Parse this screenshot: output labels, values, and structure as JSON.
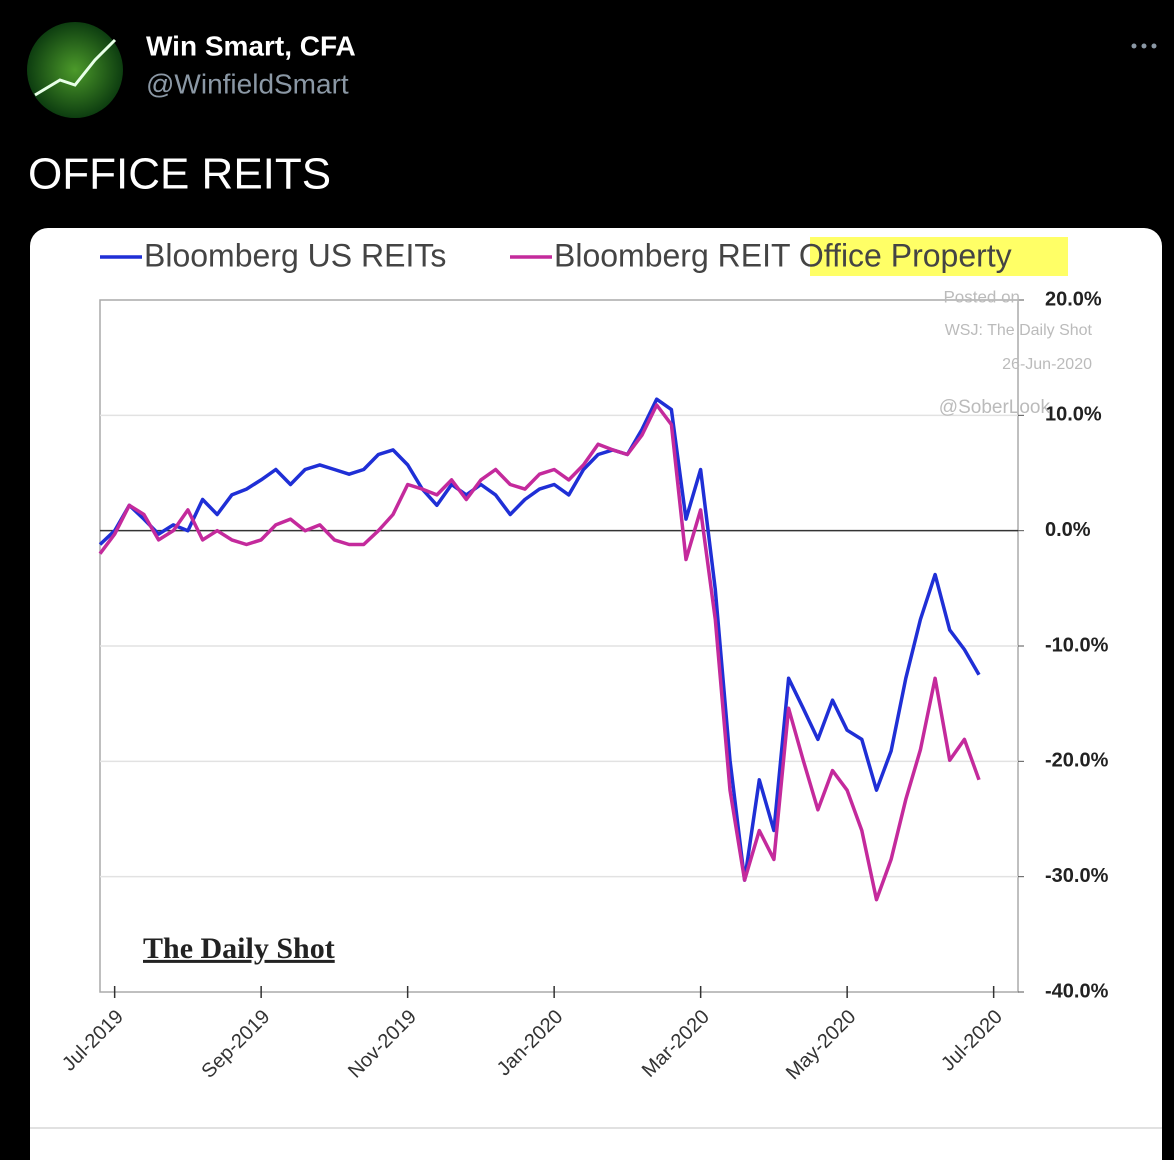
{
  "tweet": {
    "author": "Win Smart, CFA",
    "handle": "@WinfieldSmart",
    "text": "OFFICE REITS"
  },
  "chart_data": {
    "type": "line",
    "categories": [
      null,
      "Jul-2019",
      null,
      null,
      null,
      null,
      null,
      null,
      null,
      null,
      null,
      "Sep-2019",
      null,
      null,
      null,
      null,
      null,
      null,
      null,
      null,
      null,
      "Nov-2019",
      null,
      null,
      null,
      null,
      null,
      null,
      null,
      null,
      null,
      "Jan-2020",
      null,
      null,
      null,
      null,
      null,
      null,
      null,
      null,
      null,
      "Mar-2020",
      null,
      null,
      null,
      null,
      null,
      null,
      null,
      null,
      null,
      "May-2020",
      null,
      null,
      null,
      null,
      null,
      null,
      null,
      null,
      null,
      "Jul-2020"
    ],
    "series": [
      {
        "name": "Bloomberg US REITs",
        "color": "#1f2fd6",
        "values": [
          -1.2,
          0,
          2.2,
          1,
          -0.3,
          0.5,
          0,
          2.7,
          1.4,
          3.1,
          3.6,
          4.4,
          5.3,
          4,
          5.3,
          5.7,
          5.3,
          4.9,
          5.3,
          6.6,
          7,
          5.7,
          3.6,
          2.2,
          4,
          3.1,
          4,
          3.1,
          1.4,
          2.7,
          3.6,
          4,
          3.1,
          5.3,
          6.6,
          7,
          6.6,
          8.8,
          11.4,
          10.5,
          1,
          5.3,
          -5.1,
          -19.9,
          -30.3,
          -21.6,
          -26,
          -12.8,
          -15.4,
          -18.1,
          -14.7,
          -17.3,
          -18.1,
          -22.5,
          -19.1,
          -12.8,
          -7.7,
          -3.8,
          -8.6,
          -10.3,
          -12.5,
          null
        ]
      },
      {
        "name": "Bloomberg REIT Office Property",
        "color": "#c42a9c",
        "values": [
          -2,
          -0.3,
          2.2,
          1.4,
          -0.8,
          0,
          1.8,
          -0.8,
          0,
          -0.8,
          -1.2,
          -0.8,
          0.5,
          1,
          0,
          0.5,
          -0.8,
          -1.2,
          -1.2,
          0,
          1.4,
          4,
          3.6,
          3.1,
          4.4,
          2.7,
          4.4,
          5.3,
          4,
          3.6,
          4.9,
          5.3,
          4.4,
          5.7,
          7.5,
          7,
          6.6,
          8.3,
          10.9,
          9.2,
          -2.5,
          1.8,
          -7.7,
          -22.5,
          -30.3,
          -26,
          -28.5,
          -15.4,
          -19.9,
          -24.2,
          -20.8,
          -22.5,
          -26,
          -32,
          -28.5,
          -23.3,
          -19,
          -12.8,
          -19.9,
          -18.1,
          -21.6,
          null
        ]
      }
    ],
    "ylim": [
      -40,
      20
    ],
    "yticks": [
      {
        "value": 20,
        "label": "20.0%"
      },
      {
        "value": 10,
        "label": "10.0%"
      },
      {
        "value": 0,
        "label": "0.0%"
      },
      {
        "value": -10,
        "label": "-10.0%"
      },
      {
        "value": -20,
        "label": "-20.0%"
      },
      {
        "value": -30,
        "label": "-30.0%"
      },
      {
        "value": -40,
        "label": "-40.0%"
      }
    ],
    "grid": true,
    "legend": "top",
    "annotations": [
      "Posted on",
      "WSJ: The Daily Shot",
      "26-Jun-2020",
      "@SoberLook",
      "The Daily Shot"
    ]
  }
}
